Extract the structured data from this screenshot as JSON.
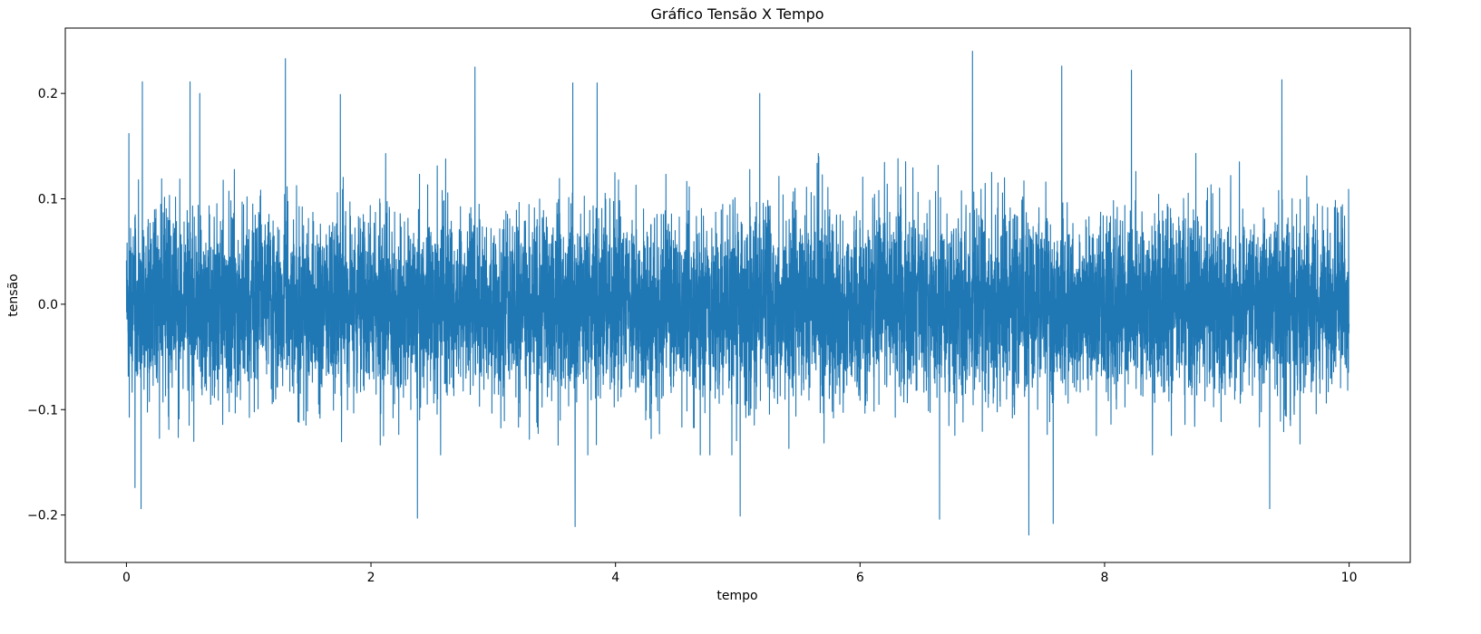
{
  "chart_data": {
    "type": "line",
    "title": "Gráfico Tensão X Tempo",
    "xlabel": "tempo",
    "ylabel": "tensão",
    "xlim": [
      -0.5,
      10.5
    ],
    "ylim": [
      -0.245,
      0.262
    ],
    "x_ticks": [
      0,
      2,
      4,
      6,
      8,
      10
    ],
    "x_tick_labels": [
      "0",
      "2",
      "4",
      "6",
      "8",
      "10"
    ],
    "y_ticks": [
      -0.2,
      -0.1,
      0.0,
      0.1,
      0.2
    ],
    "y_tick_labels": [
      "−0.2",
      "−0.1",
      "0.0",
      "0.1",
      "0.2"
    ],
    "grid": false,
    "legend": "none",
    "series": [
      {
        "color": "#1f77b4",
        "x_range": [
          0,
          10
        ],
        "typical_envelope": [
          -0.13,
          0.13
        ],
        "peaks": [
          {
            "x": 0.02,
            "y": 0.162
          },
          {
            "x": 0.13,
            "y": 0.211
          },
          {
            "x": 0.52,
            "y": 0.211
          },
          {
            "x": 0.6,
            "y": 0.2
          },
          {
            "x": 1.3,
            "y": 0.233
          },
          {
            "x": 1.75,
            "y": 0.199
          },
          {
            "x": 2.85,
            "y": 0.225
          },
          {
            "x": 3.65,
            "y": 0.21
          },
          {
            "x": 3.85,
            "y": 0.21
          },
          {
            "x": 5.18,
            "y": 0.2
          },
          {
            "x": 6.92,
            "y": 0.24
          },
          {
            "x": 7.65,
            "y": 0.226
          },
          {
            "x": 8.22,
            "y": 0.222
          },
          {
            "x": 9.45,
            "y": 0.213
          }
        ],
        "troughs": [
          {
            "x": 0.07,
            "y": -0.174
          },
          {
            "x": 0.12,
            "y": -0.194
          },
          {
            "x": 2.38,
            "y": -0.203
          },
          {
            "x": 3.67,
            "y": -0.211
          },
          {
            "x": 5.02,
            "y": -0.201
          },
          {
            "x": 6.65,
            "y": -0.204
          },
          {
            "x": 7.38,
            "y": -0.219
          },
          {
            "x": 7.58,
            "y": -0.208
          },
          {
            "x": 9.35,
            "y": -0.194
          }
        ]
      }
    ]
  }
}
